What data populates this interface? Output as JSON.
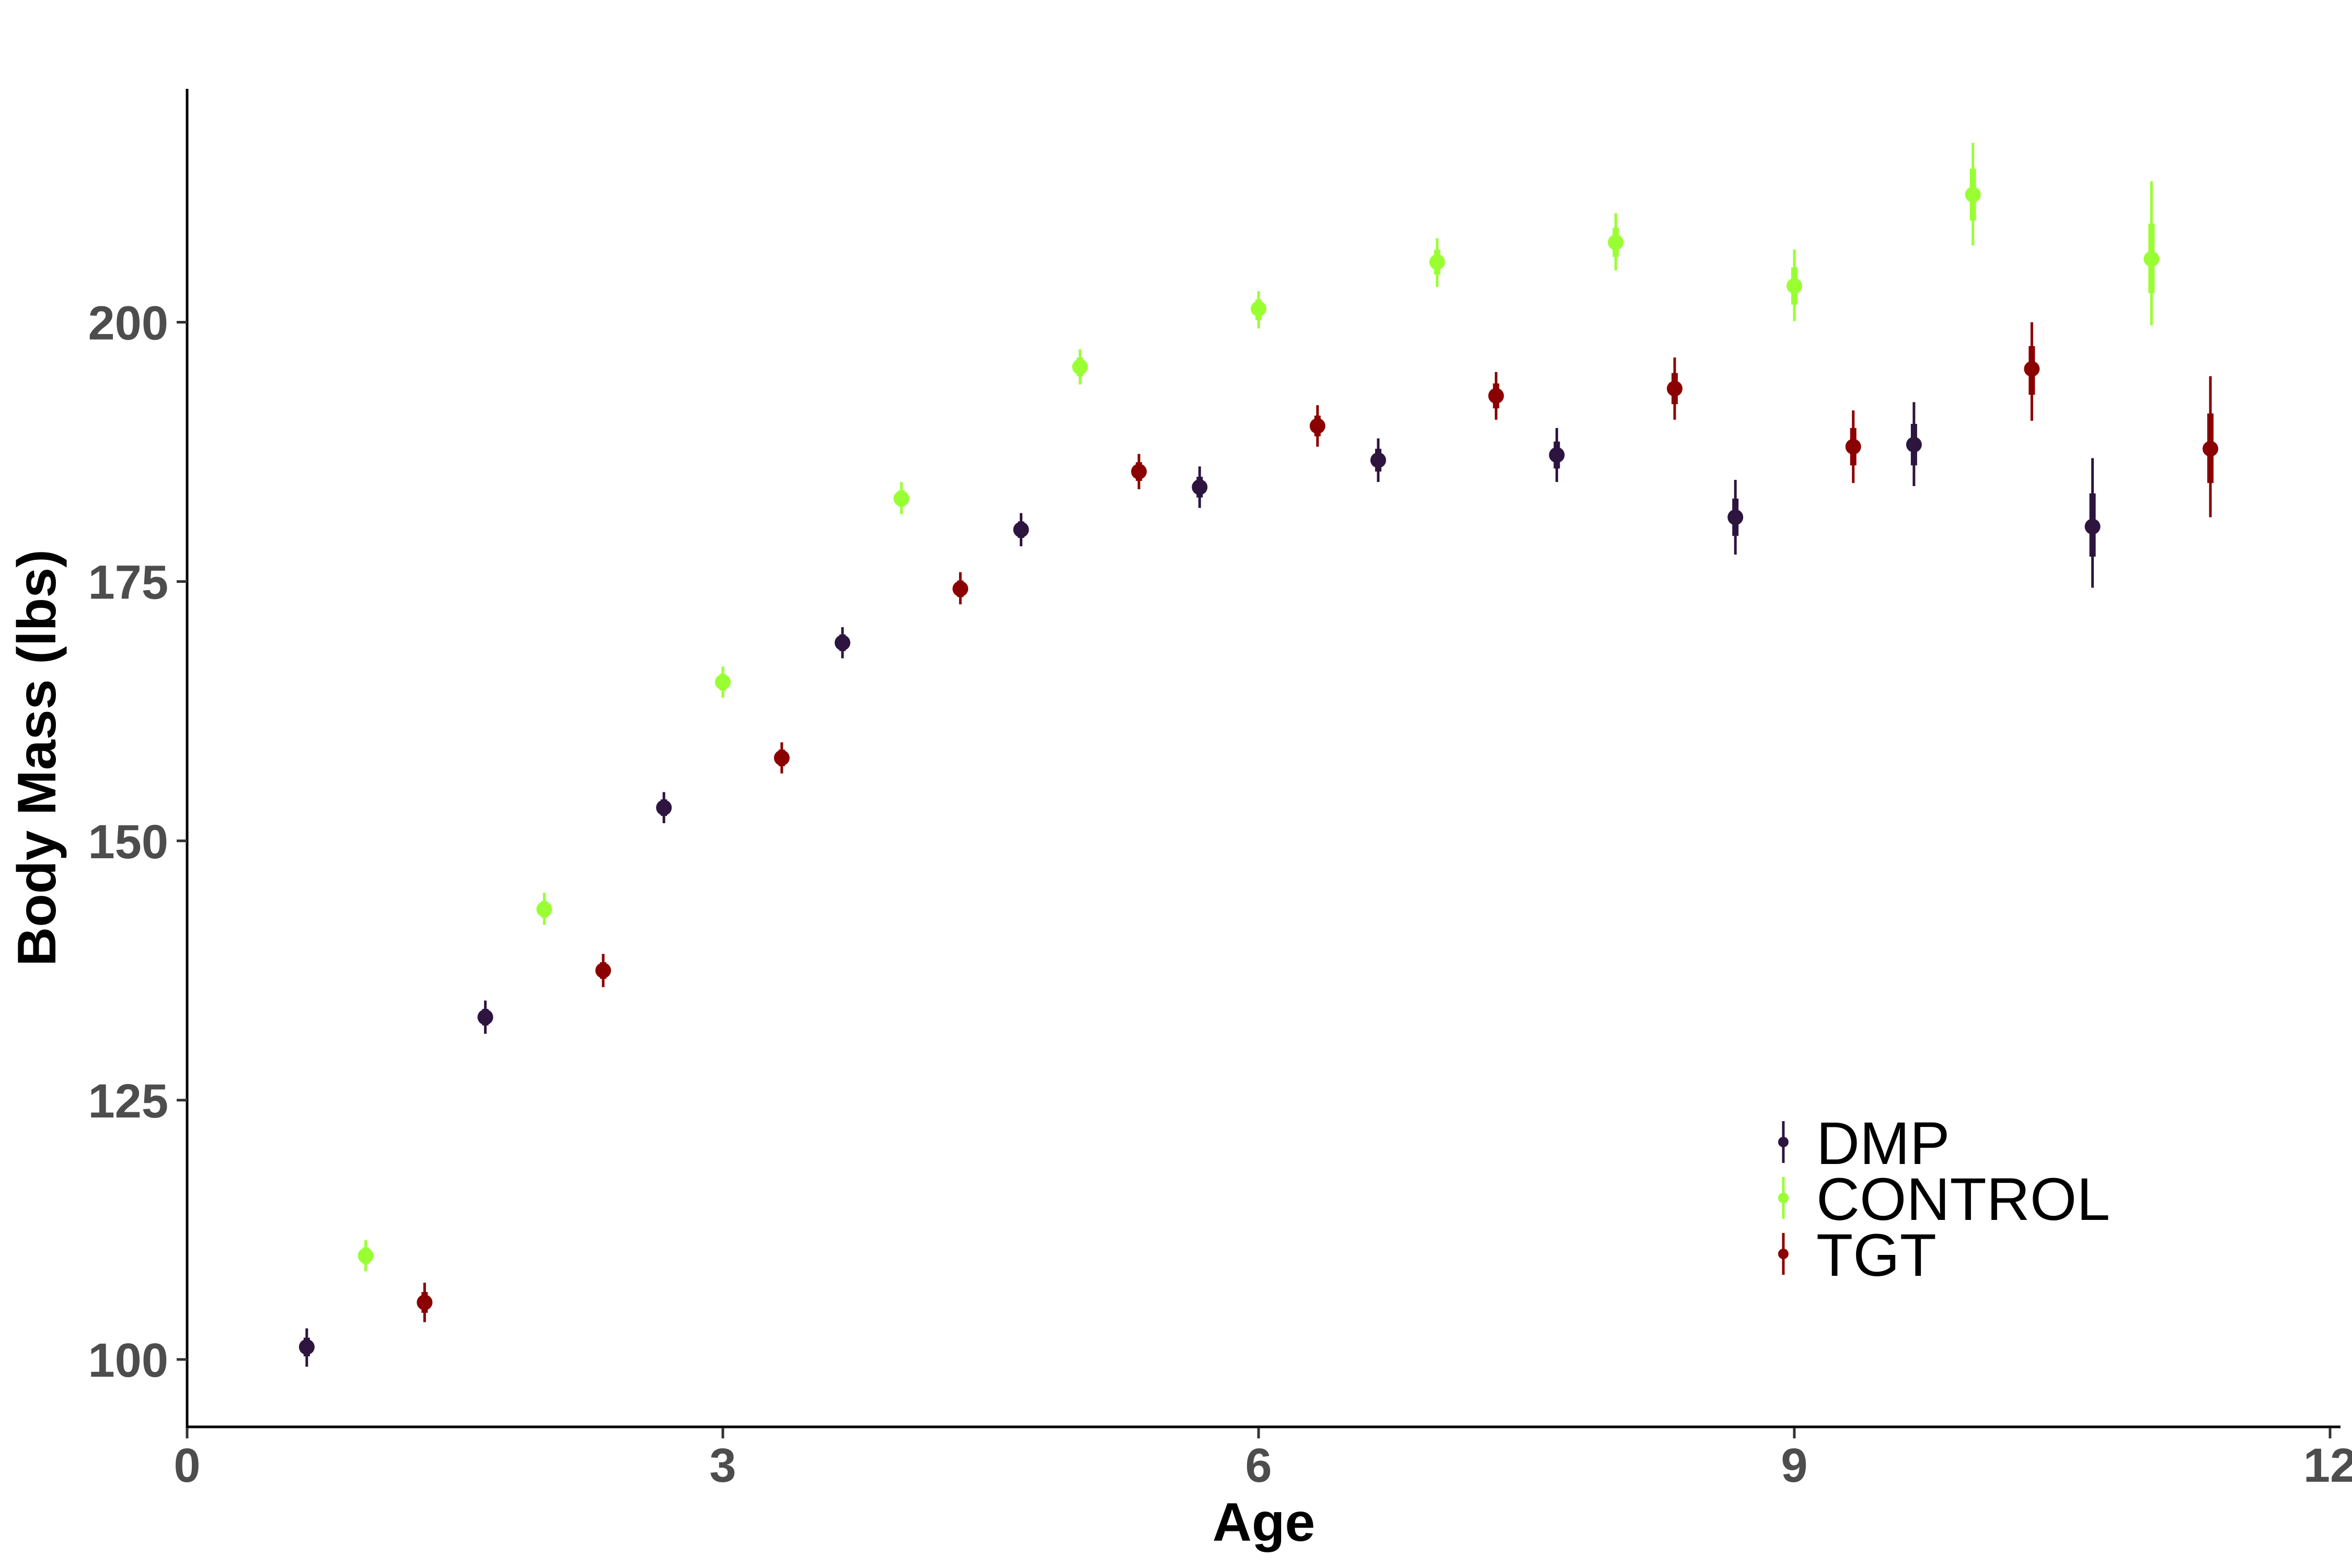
{
  "chart_data": {
    "type": "scatter",
    "title": "",
    "xlabel": "Age",
    "ylabel": "Body Mass (lbs)",
    "xlim": [
      0,
      12
    ],
    "ylim": [
      93.5,
      222.5
    ],
    "x_ticks": [
      0,
      3,
      6,
      9,
      12
    ],
    "x_tick_labels": [
      "0",
      "3",
      "6",
      "9",
      "12"
    ],
    "y_ticks": [
      100,
      125,
      150,
      175,
      200
    ],
    "y_tick_labels": [
      "100",
      "125",
      "150",
      "175",
      "200"
    ],
    "grid": false,
    "legend_position": "bottom-right",
    "series": [
      {
        "name": "DMP",
        "color": "#2d1540",
        "x": [
          0.67,
          1.67,
          2.67,
          3.67,
          4.67,
          5.67,
          6.67,
          7.67,
          8.67,
          9.67,
          10.67
        ],
        "y": [
          101.2,
          133.0,
          153.2,
          169.1,
          180.0,
          184.1,
          186.7,
          187.2,
          181.2,
          188.2,
          180.3
        ],
        "low": [
          99.3,
          131.4,
          151.7,
          167.6,
          178.4,
          182.1,
          184.6,
          184.6,
          177.6,
          184.2,
          174.4
        ],
        "high": [
          103.0,
          134.6,
          154.7,
          170.6,
          181.6,
          186.1,
          188.8,
          189.8,
          184.8,
          192.3,
          186.9
        ],
        "inner_low": [
          100.3,
          132.2,
          152.4,
          168.3,
          179.2,
          183.1,
          185.6,
          185.9,
          179.4,
          186.2,
          177.4
        ],
        "inner_high": [
          102.1,
          133.8,
          154.0,
          169.9,
          180.8,
          185.1,
          187.8,
          188.5,
          183.0,
          190.2,
          183.5
        ]
      },
      {
        "name": "CONTROL",
        "color": "#99ff33",
        "x": [
          1.0,
          2.0,
          3.0,
          4.0,
          5.0,
          6.0,
          7.0,
          8.0,
          9.0,
          10.0,
          11.0
        ],
        "y": [
          110.0,
          143.4,
          165.3,
          183.0,
          195.7,
          201.3,
          205.8,
          207.7,
          203.5,
          212.3,
          206.1
        ],
        "low": [
          108.5,
          141.9,
          163.8,
          181.5,
          194.0,
          199.4,
          203.4,
          205.0,
          200.1,
          207.4,
          199.7
        ],
        "high": [
          111.5,
          145.0,
          166.8,
          184.6,
          197.4,
          203.0,
          208.1,
          210.5,
          207.0,
          217.3,
          213.6
        ],
        "inner_low": [
          109.2,
          142.6,
          164.5,
          182.2,
          194.8,
          200.2,
          204.6,
          206.3,
          201.7,
          209.8,
          202.8
        ],
        "inner_high": [
          110.8,
          144.2,
          166.1,
          183.8,
          196.6,
          202.2,
          207.0,
          209.1,
          205.3,
          214.8,
          209.5
        ]
      },
      {
        "name": "TGT",
        "color": "#8b0000",
        "x": [
          1.33,
          2.33,
          3.33,
          4.33,
          5.33,
          6.33,
          7.33,
          8.33,
          9.33,
          10.33,
          11.33
        ],
        "y": [
          105.5,
          137.5,
          158.0,
          174.3,
          185.6,
          190.0,
          192.9,
          193.6,
          188.0,
          195.5,
          187.8
        ],
        "low": [
          103.6,
          135.9,
          156.5,
          172.8,
          183.9,
          188.0,
          190.6,
          190.6,
          184.5,
          190.5,
          181.2
        ],
        "high": [
          107.4,
          139.1,
          159.5,
          175.9,
          187.3,
          192.0,
          195.2,
          196.6,
          191.5,
          200.0,
          194.8
        ],
        "inner_low": [
          104.5,
          136.7,
          157.2,
          173.5,
          184.7,
          189.0,
          191.7,
          192.1,
          186.2,
          193.0,
          184.5
        ],
        "inner_high": [
          106.5,
          138.3,
          158.8,
          175.1,
          186.5,
          191.0,
          194.1,
          195.1,
          189.8,
          197.7,
          191.2
        ]
      }
    ]
  }
}
